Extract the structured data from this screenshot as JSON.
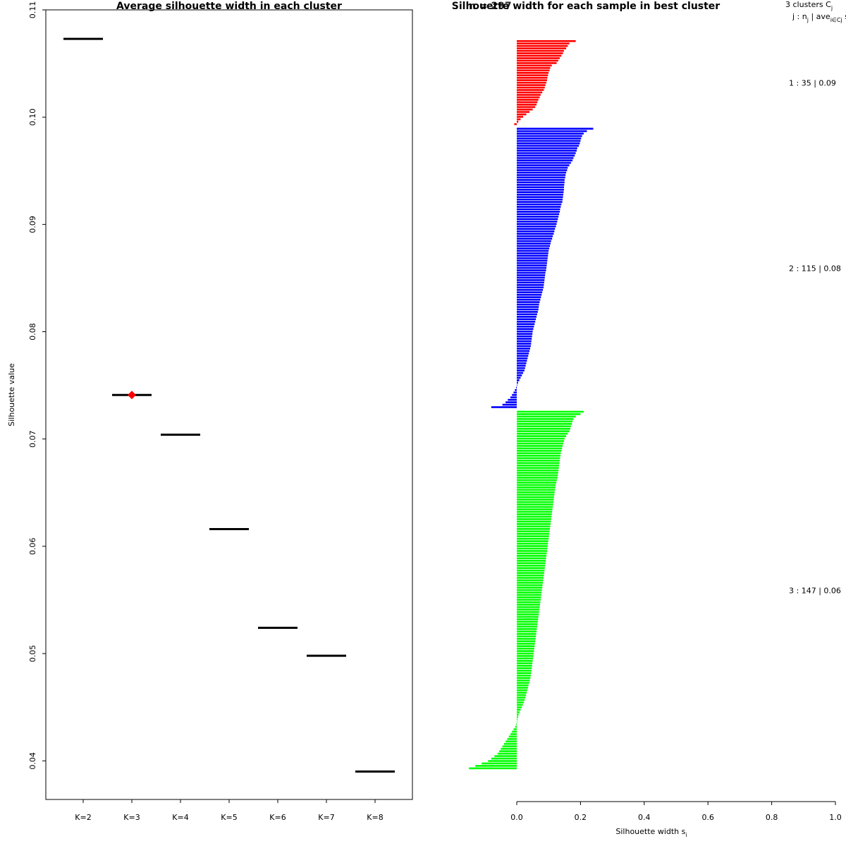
{
  "chart_data": [
    {
      "type": "scatter",
      "title": "Average silhouette width in each cluster",
      "ylabel": "Silhouette value",
      "xlabel": "",
      "categories": [
        "K=2",
        "K=3",
        "K=4",
        "K=5",
        "K=6",
        "K=7",
        "K=8"
      ],
      "values": [
        0.1073,
        0.0741,
        0.0704,
        0.0616,
        0.0524,
        0.0498,
        0.039
      ],
      "best": "K=3",
      "best_color": "#ff0000",
      "line_color": "#000000",
      "ylim": [
        0.0364,
        0.11
      ],
      "yticks": [
        0.04,
        0.05,
        0.06,
        0.07,
        0.08,
        0.09,
        0.1,
        0.11
      ],
      "ytick_labels": [
        "0.04",
        "0.05",
        "0.06",
        "0.07",
        "0.08",
        "0.09",
        "0.10",
        "0.11"
      ]
    },
    {
      "type": "bar",
      "title": "Silhouette width for each sample in best cluster",
      "title_overlap": "n = 297",
      "xlabel_main": "Silhouette width s",
      "xlabel_sub": "i",
      "xlim": [
        0,
        1
      ],
      "xticks": [
        0,
        0.2,
        0.4,
        0.6,
        0.8,
        1.0
      ],
      "xtick_labels": [
        "0.0",
        "0.2",
        "0.4",
        "0.6",
        "0.8",
        "1.0"
      ],
      "header": {
        "line1_a": "3  clusters  C",
        "line1_sub": "j",
        "line2_a": "j :  n",
        "line2_sub1": "j",
        "line2_b": " | ave",
        "line2_sub2": "i∈Cj",
        "line2_c": "  s"
      },
      "clusters": [
        {
          "id": 1,
          "n": 35,
          "avg": "0.09",
          "label": "1 :   35  |  0.09",
          "color": "#ff0000",
          "widths": [
            0.185,
            0.165,
            0.16,
            0.155,
            0.148,
            0.145,
            0.14,
            0.135,
            0.13,
            0.125,
            0.11,
            0.105,
            0.103,
            0.1,
            0.098,
            0.096,
            0.095,
            0.093,
            0.09,
            0.088,
            0.085,
            0.08,
            0.075,
            0.072,
            0.068,
            0.065,
            0.062,
            0.058,
            0.05,
            0.04,
            0.03,
            0.02,
            0.012,
            0.005,
            -0.008
          ]
        },
        {
          "id": 2,
          "n": 115,
          "avg": "0.08",
          "label": "2 :   115  |  0.08",
          "color": "#0000ff",
          "widths": [
            0.24,
            0.22,
            0.21,
            0.205,
            0.202,
            0.2,
            0.198,
            0.195,
            0.19,
            0.188,
            0.185,
            0.182,
            0.178,
            0.175,
            0.17,
            0.165,
            0.16,
            0.158,
            0.155,
            0.153,
            0.152,
            0.15,
            0.15,
            0.149,
            0.148,
            0.148,
            0.147,
            0.146,
            0.145,
            0.144,
            0.143,
            0.14,
            0.138,
            0.136,
            0.135,
            0.133,
            0.131,
            0.129,
            0.127,
            0.125,
            0.123,
            0.12,
            0.118,
            0.116,
            0.113,
            0.111,
            0.108,
            0.106,
            0.104,
            0.102,
            0.1,
            0.099,
            0.098,
            0.097,
            0.096,
            0.095,
            0.094,
            0.093,
            0.092,
            0.09,
            0.089,
            0.088,
            0.087,
            0.086,
            0.085,
            0.084,
            0.082,
            0.08,
            0.078,
            0.076,
            0.074,
            0.072,
            0.07,
            0.069,
            0.068,
            0.066,
            0.064,
            0.062,
            0.06,
            0.058,
            0.056,
            0.054,
            0.052,
            0.05,
            0.049,
            0.048,
            0.047,
            0.046,
            0.045,
            0.044,
            0.042,
            0.04,
            0.038,
            0.036,
            0.034,
            0.032,
            0.03,
            0.028,
            0.026,
            0.024,
            0.02,
            0.016,
            0.012,
            0.008,
            0.004,
            0.001,
            -0.002,
            -0.006,
            -0.01,
            -0.015,
            -0.02,
            -0.028,
            -0.035,
            -0.045,
            -0.08
          ]
        },
        {
          "id": 3,
          "n": 147,
          "avg": "0.06",
          "label": "3 :   147  |  0.06",
          "color": "#00ff00",
          "widths": [
            0.21,
            0.2,
            0.185,
            0.178,
            0.175,
            0.173,
            0.17,
            0.168,
            0.165,
            0.16,
            0.155,
            0.15,
            0.148,
            0.146,
            0.144,
            0.142,
            0.14,
            0.138,
            0.137,
            0.136,
            0.135,
            0.134,
            0.133,
            0.132,
            0.131,
            0.13,
            0.129,
            0.128,
            0.126,
            0.124,
            0.122,
            0.121,
            0.12,
            0.119,
            0.118,
            0.117,
            0.116,
            0.115,
            0.114,
            0.113,
            0.112,
            0.111,
            0.11,
            0.109,
            0.108,
            0.107,
            0.106,
            0.105,
            0.104,
            0.103,
            0.102,
            0.101,
            0.1,
            0.099,
            0.098,
            0.097,
            0.096,
            0.095,
            0.094,
            0.093,
            0.092,
            0.091,
            0.09,
            0.089,
            0.088,
            0.087,
            0.086,
            0.085,
            0.084,
            0.083,
            0.082,
            0.081,
            0.08,
            0.079,
            0.078,
            0.077,
            0.076,
            0.075,
            0.074,
            0.073,
            0.072,
            0.071,
            0.07,
            0.069,
            0.068,
            0.067,
            0.066,
            0.065,
            0.064,
            0.063,
            0.062,
            0.061,
            0.06,
            0.059,
            0.058,
            0.057,
            0.056,
            0.055,
            0.054,
            0.053,
            0.052,
            0.051,
            0.05,
            0.049,
            0.048,
            0.047,
            0.046,
            0.045,
            0.044,
            0.043,
            0.041,
            0.039,
            0.037,
            0.035,
            0.033,
            0.031,
            0.029,
            0.027,
            0.025,
            0.022,
            0.019,
            0.016,
            0.012,
            0.009,
            0.006,
            0.004,
            0.002,
            0.001,
            -0.002,
            -0.005,
            -0.01,
            -0.015,
            -0.02,
            -0.025,
            -0.03,
            -0.035,
            -0.04,
            -0.045,
            -0.05,
            -0.055,
            -0.06,
            -0.07,
            -0.08,
            -0.09,
            -0.11,
            -0.13,
            -0.15
          ]
        }
      ]
    }
  ]
}
